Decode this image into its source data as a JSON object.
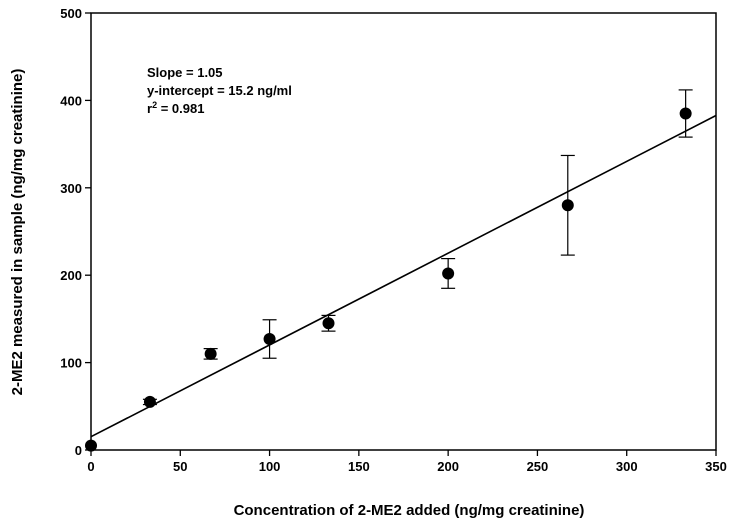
{
  "chart_data": {
    "type": "scatter",
    "title": "",
    "xlabel": "Concentration of 2-ME2 added (ng/mg creatinine)",
    "ylabel": "2-ME2 measured in sample (ng/mg creatinine)",
    "xlim": [
      0,
      350
    ],
    "ylim": [
      0,
      500
    ],
    "x_ticks": [
      "0",
      "50",
      "100",
      "150",
      "200",
      "250",
      "300",
      "350"
    ],
    "y_ticks": [
      "0",
      "100",
      "200",
      "300",
      "400",
      "500"
    ],
    "grid": false,
    "legend": "none",
    "series": [
      {
        "points": [
          {
            "x": 0,
            "y": 5,
            "err": 0
          },
          {
            "x": 33,
            "y": 55,
            "err": 3
          },
          {
            "x": 67,
            "y": 110,
            "err": 6
          },
          {
            "x": 100,
            "y": 127,
            "err": 22
          },
          {
            "x": 133,
            "y": 145,
            "err": 9
          },
          {
            "x": 200,
            "y": 202,
            "err": 17
          },
          {
            "x": 267,
            "y": 280,
            "err": 57
          },
          {
            "x": 333,
            "y": 385,
            "err": 27
          }
        ]
      }
    ],
    "fit_line": {
      "slope": 1.05,
      "intercept": 15.2
    },
    "annotations": {
      "slope": "Slope = 1.05",
      "intercept": "y-intercept = 15.2 ng/ml",
      "r2_prefix": "r",
      "r2_sup": "2",
      "r2_value": " = 0.981"
    },
    "colors": {
      "marker": "#000000",
      "line": "#000000"
    }
  }
}
